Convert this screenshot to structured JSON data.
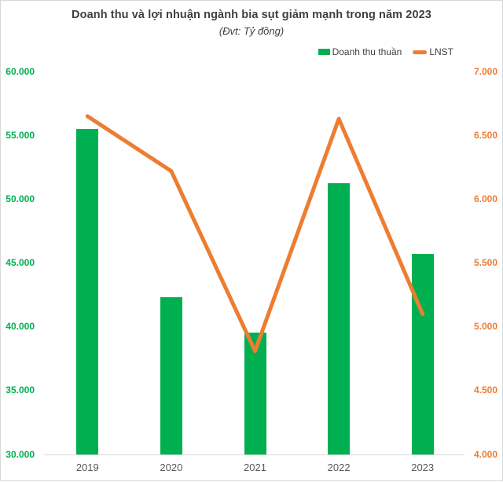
{
  "chart_data": {
    "type": "combo-bar-line",
    "title": "Doanh thu và lợi nhuận ngành bia sụt giảm mạnh trong năm 2023",
    "subtitle": "(Đvt: Tỷ đồng)",
    "categories": [
      "2019",
      "2020",
      "2021",
      "2022",
      "2023"
    ],
    "series": [
      {
        "name": "Doanh thu thuần",
        "type": "bar",
        "y_axis": "left",
        "color": "#00B050",
        "values": [
          55500,
          42300,
          39550,
          51270,
          45700
        ]
      },
      {
        "name": "LNST",
        "type": "line",
        "y_axis": "right",
        "color": "#ED7D31",
        "values": [
          6650,
          6220,
          4810,
          6630,
          5100
        ]
      }
    ],
    "left_axis": {
      "min": 30000,
      "max": 60000,
      "step": 5000,
      "tick_labels": [
        "30.000",
        "35.000",
        "40.000",
        "45.000",
        "50.000",
        "55.000",
        "60.000"
      ],
      "color": "#00B050"
    },
    "right_axis": {
      "min": 4000,
      "max": 7000,
      "step": 500,
      "tick_labels": [
        "4.000",
        "4.500",
        "5.000",
        "5.500",
        "6.000",
        "6.500",
        "7.000"
      ],
      "color": "#ED7D31"
    },
    "legend_position": "top-right",
    "grid": false,
    "axis_line_color": "#D9D9D9",
    "xlabel": "",
    "ylabel_left": "",
    "ylabel_right": ""
  }
}
